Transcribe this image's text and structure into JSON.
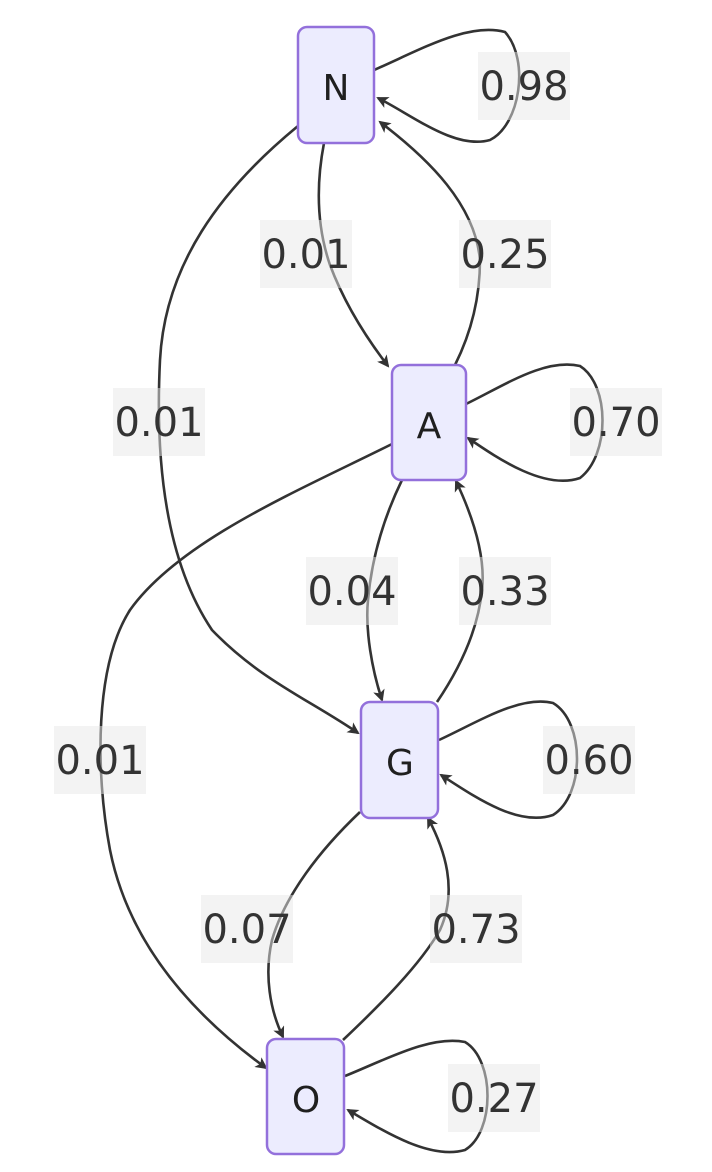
{
  "nodes": [
    {
      "id": "N",
      "label": "N"
    },
    {
      "id": "A",
      "label": "A"
    },
    {
      "id": "G",
      "label": "G"
    },
    {
      "id": "O",
      "label": "O"
    }
  ],
  "edges": [
    {
      "id": "N-N",
      "from": "N",
      "to": "N",
      "label": "0.98"
    },
    {
      "id": "N-A",
      "from": "N",
      "to": "A",
      "label": "0.01"
    },
    {
      "id": "A-N",
      "from": "A",
      "to": "N",
      "label": "0.25"
    },
    {
      "id": "N-G",
      "from": "N",
      "to": "G",
      "label": "0.01"
    },
    {
      "id": "A-A",
      "from": "A",
      "to": "A",
      "label": "0.70"
    },
    {
      "id": "A-G",
      "from": "A",
      "to": "G",
      "label": "0.04"
    },
    {
      "id": "G-A",
      "from": "G",
      "to": "A",
      "label": "0.33"
    },
    {
      "id": "A-O",
      "from": "A",
      "to": "O",
      "label": "0.01"
    },
    {
      "id": "G-G",
      "from": "G",
      "to": "G",
      "label": "0.60"
    },
    {
      "id": "G-O",
      "from": "G",
      "to": "O",
      "label": "0.07"
    },
    {
      "id": "O-G",
      "from": "O",
      "to": "G",
      "label": "0.73"
    },
    {
      "id": "O-O",
      "from": "O",
      "to": "O",
      "label": "0.27"
    }
  ]
}
